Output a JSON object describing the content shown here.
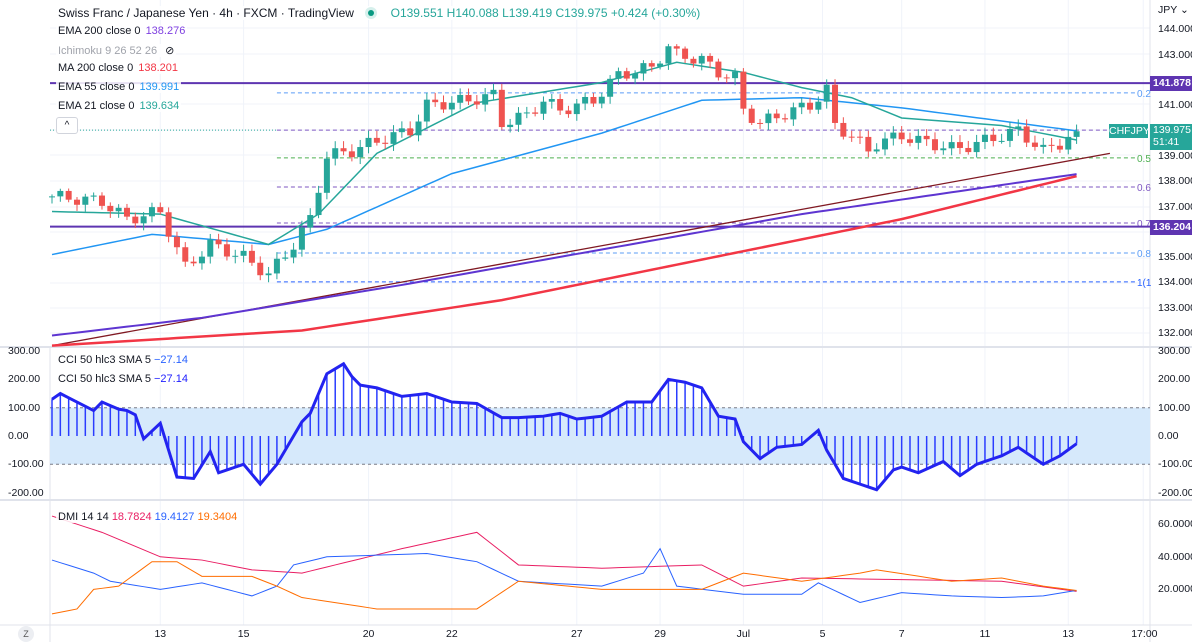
{
  "header": {
    "title": "Swiss Franc / Japanese Yen · 4h · FXCM · TradingView",
    "open": "O139.551",
    "high": "H140.088",
    "low": "L139.419",
    "close": "C139.975",
    "change": "+0.424 (+0.30%)"
  },
  "indicators": [
    {
      "name": "EMA 200 close 0",
      "value": "138.276",
      "color": "#7e3fe0"
    },
    {
      "name": "Ichimoku 9 26 52 26",
      "value": "",
      "color": "#b2b5be"
    },
    {
      "name": "MA 200 close 0",
      "value": "138.201",
      "color": "#f23645"
    },
    {
      "name": "EMA 55 close 0",
      "value": "139.991",
      "color": "#2196f3"
    },
    {
      "name": "EMA 21 close 0",
      "value": "139.634",
      "color": "#26a69a"
    }
  ],
  "cci": [
    {
      "name": "CCI 50 hlc3 SMA 5",
      "value": "−27.14"
    },
    {
      "name": "CCI 50 hlc3 SMA 5",
      "value": "−27.14"
    }
  ],
  "dmi": {
    "name": "DMI 14 14",
    "adx": "18.7824",
    "plus_di": "19.4127",
    "minus_di": "19.3404"
  },
  "price_axis": {
    "currency": "JPY ⌄",
    "ticks": [
      "144.000",
      "143.000",
      "141.000",
      "139.000",
      "138.000",
      "137.000",
      "135.000",
      "134.000",
      "133.000",
      "132.000"
    ],
    "levels": [
      {
        "label": "141.878",
        "price": 141.878,
        "color": "#5e35b1"
      },
      {
        "label": "136.204",
        "price": 136.204,
        "color": "#5e35b1"
      }
    ],
    "current": {
      "price": "139.975",
      "countdown": "51:41",
      "symbol": "CHFJPY",
      "color": "#26a69a"
    }
  },
  "cci_axis": [
    "300.00",
    "200.00",
    "100.00",
    "0.00",
    "-100.00",
    "-200.00"
  ],
  "dmi_axis": [
    "60.0000",
    "40.0000",
    "20.0000"
  ],
  "time_axis": [
    {
      "label": "13",
      "bar": 13
    },
    {
      "label": "15",
      "bar": 23
    },
    {
      "label": "20",
      "bar": 38
    },
    {
      "label": "22",
      "bar": 48
    },
    {
      "label": "27",
      "bar": 63
    },
    {
      "label": "29",
      "bar": 73
    },
    {
      "label": "Jul",
      "bar": 83
    },
    {
      "label": "5",
      "bar": 92.5
    },
    {
      "label": "7",
      "bar": 102
    },
    {
      "label": "11",
      "bar": 112
    },
    {
      "label": "13",
      "bar": 122
    },
    {
      "label": "17:00",
      "bar": 131
    }
  ],
  "fib": [
    {
      "label": "0.2",
      "price": 141.49,
      "color": "#5b9cf6"
    },
    {
      "label": "",
      "price": 140.02,
      "color": "#7e57c2"
    },
    {
      "label": "0.5",
      "price": 138.92,
      "color": "#4caf50"
    },
    {
      "label": "0.6",
      "price": 137.77,
      "color": "#7e57c2"
    },
    {
      "label": "0.7",
      "price": 136.35,
      "color": "#7e57c2"
    },
    {
      "label": "0.8",
      "price": 135.16,
      "color": "#5b9cf6"
    },
    {
      "label": "1(1",
      "price": 134.02,
      "color": "#2962ff"
    }
  ],
  "zoom_button": "Z",
  "chart_data": {
    "type": "candlestick",
    "bars": 124,
    "close_keys": [
      [
        0,
        137.4
      ],
      [
        6,
        137.2
      ],
      [
        9,
        136.5
      ],
      [
        13,
        136.8
      ],
      [
        15,
        135.3
      ],
      [
        16,
        134.6
      ],
      [
        19,
        135.5
      ],
      [
        23,
        135
      ],
      [
        26,
        134.3
      ],
      [
        29,
        135.5
      ],
      [
        31,
        136.5
      ],
      [
        33,
        139
      ],
      [
        36,
        139.2
      ],
      [
        39,
        139.6
      ],
      [
        43,
        140
      ],
      [
        45,
        141
      ],
      [
        50,
        141.2
      ],
      [
        53,
        141.4
      ],
      [
        54,
        140.3
      ],
      [
        57,
        140.6
      ],
      [
        59,
        141.2
      ],
      [
        61,
        140.8
      ],
      [
        65,
        141.2
      ],
      [
        68,
        142.2
      ],
      [
        72,
        142.5
      ],
      [
        74,
        143.3
      ],
      [
        75,
        143
      ],
      [
        78,
        142.8
      ],
      [
        80,
        142.3
      ],
      [
        82,
        142.1
      ],
      [
        83,
        140.8
      ],
      [
        85,
        140.3
      ],
      [
        89,
        140.8
      ],
      [
        91,
        141
      ],
      [
        93,
        141.6
      ],
      [
        94,
        140.2
      ],
      [
        96,
        139.8
      ],
      [
        98,
        139.2
      ],
      [
        99,
        139.5
      ],
      [
        102,
        139.8
      ],
      [
        104,
        139.6
      ],
      [
        108,
        139.3
      ],
      [
        109,
        139.3
      ],
      [
        111,
        139.5
      ],
      [
        114,
        139.8
      ],
      [
        116,
        140
      ],
      [
        119,
        139.2
      ],
      [
        121,
        139.5
      ],
      [
        123,
        139.975
      ]
    ],
    "ma200": [
      [
        0,
        131.5
      ],
      [
        30,
        132.1
      ],
      [
        54,
        133.3
      ],
      [
        78,
        134.9
      ],
      [
        102,
        136.5
      ],
      [
        123,
        138.2
      ]
    ],
    "ema200": [
      [
        0,
        131.9
      ],
      [
        18,
        132.6
      ],
      [
        42,
        133.9
      ],
      [
        66,
        135.3
      ],
      [
        90,
        136.7
      ],
      [
        123,
        138.28
      ]
    ],
    "ema55": [
      [
        0,
        135.1
      ],
      [
        12,
        135.9
      ],
      [
        26,
        135.5
      ],
      [
        33,
        136.1
      ],
      [
        48,
        138.3
      ],
      [
        66,
        139.9
      ],
      [
        78,
        141.2
      ],
      [
        90,
        141.3
      ],
      [
        102,
        140.9
      ],
      [
        123,
        139.99
      ]
    ],
    "ema21": [
      [
        0,
        136.8
      ],
      [
        13,
        136.7
      ],
      [
        26,
        135.5
      ],
      [
        32,
        136.7
      ],
      [
        39,
        139.1
      ],
      [
        51,
        141.1
      ],
      [
        66,
        141.9
      ],
      [
        75,
        142.7
      ],
      [
        83,
        142.3
      ],
      [
        90,
        141.7
      ],
      [
        96,
        141.3
      ],
      [
        102,
        140.5
      ],
      [
        114,
        140.2
      ],
      [
        123,
        139.63
      ]
    ],
    "trendline": [
      [
        0,
        131.5
      ],
      [
        127,
        139.1
      ]
    ],
    "cci": [
      [
        0,
        130
      ],
      [
        1,
        150
      ],
      [
        3,
        120
      ],
      [
        5,
        90
      ],
      [
        6,
        120
      ],
      [
        8,
        95
      ],
      [
        9,
        90
      ],
      [
        10,
        75
      ],
      [
        11,
        -10
      ],
      [
        13,
        45
      ],
      [
        15,
        -145
      ],
      [
        17,
        -150
      ],
      [
        19,
        -55
      ],
      [
        20,
        -130
      ],
      [
        23,
        -100
      ],
      [
        25,
        -170
      ],
      [
        27,
        -100
      ],
      [
        29,
        0
      ],
      [
        30,
        50
      ],
      [
        31,
        80
      ],
      [
        33,
        220
      ],
      [
        35,
        255
      ],
      [
        36,
        210
      ],
      [
        37,
        180
      ],
      [
        39,
        170
      ],
      [
        42,
        140
      ],
      [
        45,
        150
      ],
      [
        48,
        120
      ],
      [
        51,
        115
      ],
      [
        54,
        65
      ],
      [
        56,
        65
      ],
      [
        59,
        70
      ],
      [
        61,
        80
      ],
      [
        63,
        60
      ],
      [
        66,
        70
      ],
      [
        69,
        120
      ],
      [
        72,
        120
      ],
      [
        74,
        200
      ],
      [
        76,
        190
      ],
      [
        78,
        170
      ],
      [
        80,
        70
      ],
      [
        82,
        60
      ],
      [
        83,
        -20
      ],
      [
        85,
        -80
      ],
      [
        87,
        -40
      ],
      [
        90,
        -30
      ],
      [
        92,
        20
      ],
      [
        93,
        -50
      ],
      [
        95,
        -150
      ],
      [
        97,
        -170
      ],
      [
        99,
        -190
      ],
      [
        101,
        -120
      ],
      [
        102,
        -110
      ],
      [
        104,
        -130
      ],
      [
        107,
        -90
      ],
      [
        109,
        -140
      ],
      [
        111,
        -100
      ],
      [
        114,
        -70
      ],
      [
        116,
        -40
      ],
      [
        119,
        -100
      ],
      [
        121,
        -70
      ],
      [
        123,
        -27.14
      ]
    ],
    "dmi_adx": [
      [
        0,
        65
      ],
      [
        6,
        55
      ],
      [
        13,
        40
      ],
      [
        18,
        38
      ],
      [
        24,
        32
      ],
      [
        30,
        30
      ],
      [
        42,
        45
      ],
      [
        51,
        55
      ],
      [
        56,
        35
      ],
      [
        66,
        33
      ],
      [
        78,
        35
      ],
      [
        83,
        22
      ],
      [
        90,
        27
      ],
      [
        102,
        26
      ],
      [
        114,
        25
      ],
      [
        123,
        18.78
      ]
    ],
    "dmi_plus": [
      [
        0,
        38
      ],
      [
        5,
        30
      ],
      [
        7,
        25
      ],
      [
        13,
        20
      ],
      [
        18,
        24
      ],
      [
        24,
        16
      ],
      [
        27,
        22
      ],
      [
        29,
        35
      ],
      [
        33,
        40
      ],
      [
        45,
        42
      ],
      [
        51,
        37
      ],
      [
        56,
        25
      ],
      [
        66,
        22
      ],
      [
        71,
        30
      ],
      [
        73,
        45
      ],
      [
        75,
        22
      ],
      [
        83,
        17
      ],
      [
        90,
        17
      ],
      [
        92,
        24
      ],
      [
        97,
        12
      ],
      [
        102,
        18
      ],
      [
        108,
        16
      ],
      [
        114,
        15
      ],
      [
        119,
        16
      ],
      [
        123,
        19.41
      ]
    ],
    "dmi_minus": [
      [
        0,
        5
      ],
      [
        3,
        8
      ],
      [
        5,
        20
      ],
      [
        8,
        22
      ],
      [
        12,
        37
      ],
      [
        15,
        37
      ],
      [
        18,
        28
      ],
      [
        24,
        28
      ],
      [
        27,
        22
      ],
      [
        30,
        15
      ],
      [
        39,
        8
      ],
      [
        51,
        8
      ],
      [
        56,
        25
      ],
      [
        66,
        20
      ],
      [
        78,
        20
      ],
      [
        83,
        30
      ],
      [
        90,
        25
      ],
      [
        97,
        30
      ],
      [
        99,
        32
      ],
      [
        108,
        25
      ],
      [
        114,
        27
      ],
      [
        119,
        22
      ],
      [
        123,
        19.34
      ]
    ]
  }
}
